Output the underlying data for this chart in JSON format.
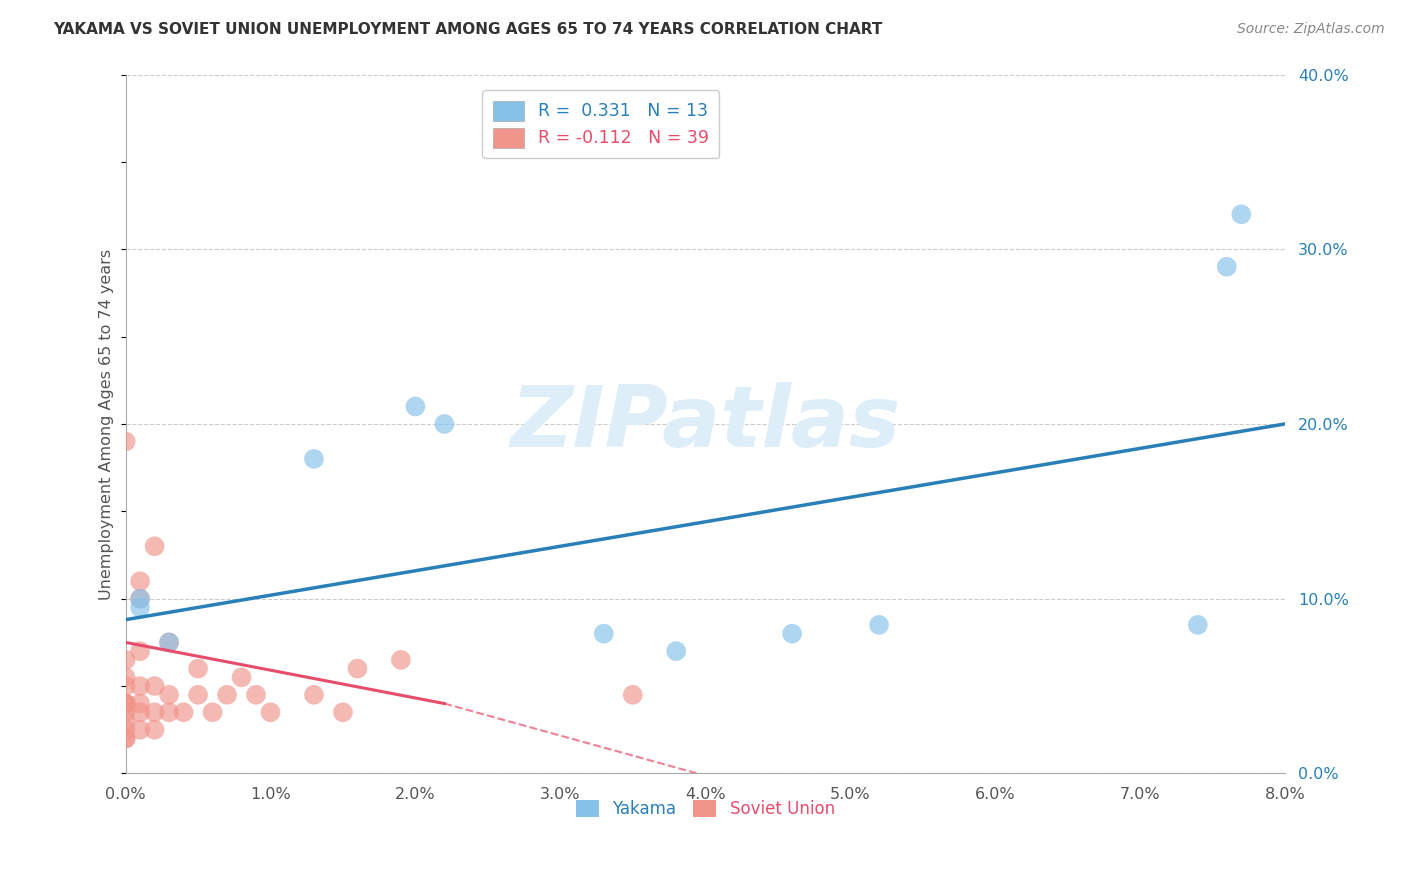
{
  "title": "YAKAMA VS SOVIET UNION UNEMPLOYMENT AMONG AGES 65 TO 74 YEARS CORRELATION CHART",
  "source": "Source: ZipAtlas.com",
  "ylabel": "Unemployment Among Ages 65 to 74 years",
  "xlim": [
    0.0,
    0.08
  ],
  "ylim": [
    0.0,
    0.4
  ],
  "x_ticks": [
    0.0,
    0.01,
    0.02,
    0.03,
    0.04,
    0.05,
    0.06,
    0.07,
    0.08
  ],
  "x_tick_labels": [
    "0.0%",
    "1.0%",
    "2.0%",
    "3.0%",
    "4.0%",
    "5.0%",
    "6.0%",
    "7.0%",
    "8.0%"
  ],
  "y_ticks": [
    0.0,
    0.1,
    0.2,
    0.3,
    0.4
  ],
  "y_tick_labels": [
    "0.0%",
    "10.0%",
    "20.0%",
    "30.0%",
    "40.0%"
  ],
  "yakama_color": "#85c1e9",
  "soviet_color": "#f1948a",
  "yakama_line_color": "#2980b9",
  "soviet_line_color": "#e74c6b",
  "watermark_color": "#ddeef8",
  "legend_R_yakama": "R =  0.331   N = 13",
  "legend_R_soviet": "R = -0.112   N = 39",
  "yakama_x": [
    0.001,
    0.001,
    0.003,
    0.013,
    0.02,
    0.022,
    0.033,
    0.038,
    0.046,
    0.052,
    0.074,
    0.076,
    0.077
  ],
  "yakama_y": [
    0.095,
    0.1,
    0.075,
    0.18,
    0.21,
    0.2,
    0.08,
    0.07,
    0.08,
    0.085,
    0.085,
    0.29,
    0.32
  ],
  "soviet_x": [
    0.0,
    0.0,
    0.0,
    0.0,
    0.0,
    0.0,
    0.0,
    0.0,
    0.0,
    0.0,
    0.0,
    0.0,
    0.001,
    0.001,
    0.001,
    0.001,
    0.001,
    0.001,
    0.001,
    0.002,
    0.002,
    0.002,
    0.002,
    0.003,
    0.003,
    0.003,
    0.004,
    0.005,
    0.005,
    0.006,
    0.007,
    0.008,
    0.009,
    0.01,
    0.013,
    0.015,
    0.016,
    0.019,
    0.035
  ],
  "soviet_y": [
    0.02,
    0.02,
    0.025,
    0.03,
    0.035,
    0.04,
    0.04,
    0.04,
    0.05,
    0.055,
    0.065,
    0.19,
    0.025,
    0.035,
    0.04,
    0.05,
    0.07,
    0.1,
    0.11,
    0.025,
    0.035,
    0.05,
    0.13,
    0.035,
    0.045,
    0.075,
    0.035,
    0.045,
    0.06,
    0.035,
    0.045,
    0.055,
    0.045,
    0.035,
    0.045,
    0.035,
    0.06,
    0.065,
    0.045
  ],
  "background_color": "#ffffff",
  "grid_color": "#cccccc"
}
